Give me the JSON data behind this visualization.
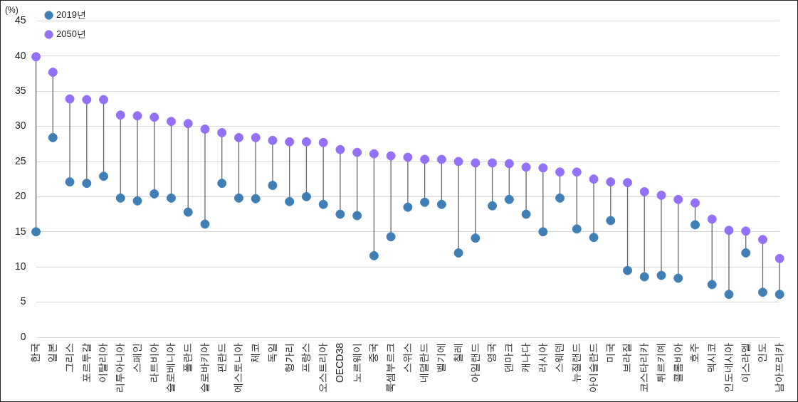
{
  "chart_data": {
    "type": "scatter",
    "ylabel": "(%)",
    "categories": [
      "한국",
      "일본",
      "그리스",
      "포르투갈",
      "이탈리아",
      "리투아니아",
      "스페인",
      "라트비아",
      "슬로베니아",
      "폴란드",
      "슬로바키아",
      "핀란드",
      "에스토니아",
      "체코",
      "독일",
      "헝가리",
      "프랑스",
      "오스트리아",
      "OECD38",
      "노르웨이",
      "중국",
      "룩셈부르크",
      "스위스",
      "네덜란드",
      "벨기에",
      "칠레",
      "아일랜드",
      "영국",
      "덴마크",
      "캐나다",
      "러시아",
      "스웨덴",
      "뉴질랜드",
      "아이슬란드",
      "미국",
      "브라질",
      "코스타리카",
      "튀르키예",
      "콜롬비아",
      "호주",
      "멕시코",
      "인도네시아",
      "이스라엘",
      "인도",
      "남아프리카"
    ],
    "series": [
      {
        "name": "2019년",
        "color": "#3f7fb6",
        "values": [
          15.0,
          28.4,
          22.1,
          21.9,
          22.9,
          19.8,
          19.4,
          20.4,
          19.8,
          17.8,
          16.1,
          21.9,
          19.8,
          19.7,
          21.6,
          19.3,
          20.0,
          18.9,
          17.5,
          17.3,
          11.6,
          14.3,
          18.5,
          19.2,
          18.9,
          12.0,
          14.1,
          18.7,
          19.6,
          17.5,
          15.0,
          19.8,
          15.4,
          14.2,
          16.6,
          9.5,
          8.6,
          8.8,
          8.4,
          16.0,
          7.5,
          6.1,
          12.0,
          6.4,
          6.1
        ]
      },
      {
        "name": "2050년",
        "color": "#9370f7",
        "values": [
          39.9,
          37.7,
          33.9,
          33.8,
          33.8,
          31.6,
          31.5,
          31.3,
          30.7,
          30.4,
          29.6,
          29.1,
          28.4,
          28.4,
          28.0,
          27.8,
          27.8,
          27.7,
          26.7,
          26.3,
          26.1,
          25.8,
          25.6,
          25.3,
          25.3,
          25.0,
          24.8,
          24.8,
          24.7,
          24.2,
          24.1,
          23.5,
          23.5,
          22.5,
          22.1,
          22.0,
          20.7,
          20.2,
          19.6,
          19.1,
          16.8,
          15.2,
          15.1,
          13.9,
          11.2
        ]
      }
    ],
    "ylim": [
      0,
      45
    ],
    "yticks": [
      0,
      5,
      10,
      15,
      20,
      25,
      30,
      35,
      40,
      45
    ],
    "grid": "y",
    "legend": "top left",
    "marker": "circle"
  }
}
